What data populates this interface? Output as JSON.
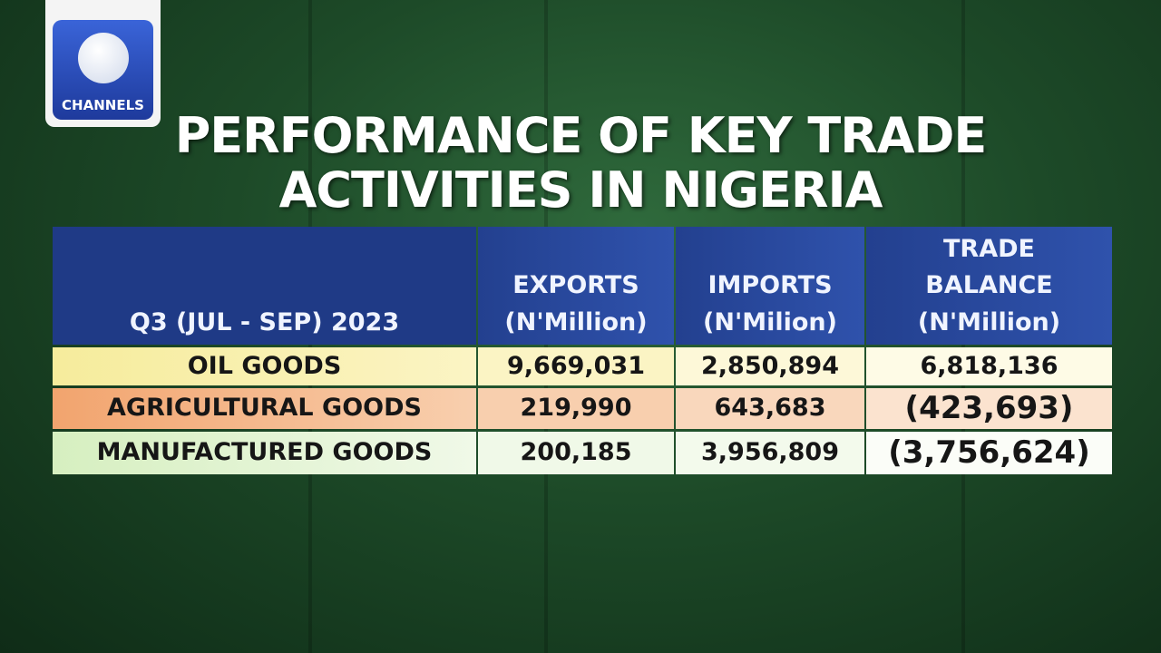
{
  "logo": {
    "text": "CHANNELS"
  },
  "title": {
    "lines": [
      "PERFORMANCE OF KEY TRADE",
      "ACTIVITIES IN NIGERIA"
    ]
  },
  "table": {
    "header": [
      [
        "Q3 (JUL - SEP) 2023"
      ],
      [
        "EXPORTS",
        "(N'Million)"
      ],
      [
        "IMPORTS",
        "(N'Milion)"
      ],
      [
        "TRADE",
        "BALANCE",
        "(N'Million)"
      ]
    ],
    "rows": [
      [
        "OIL GOODS",
        "9,669,031",
        "2,850,894",
        "6,818,136"
      ],
      [
        "AGRICULTURAL GOODS",
        "219,990",
        "643,683",
        "(423,693)"
      ],
      [
        "MANUFACTURED GOODS",
        "200,185",
        "3,956,809",
        "(3,756,624)"
      ]
    ]
  }
}
